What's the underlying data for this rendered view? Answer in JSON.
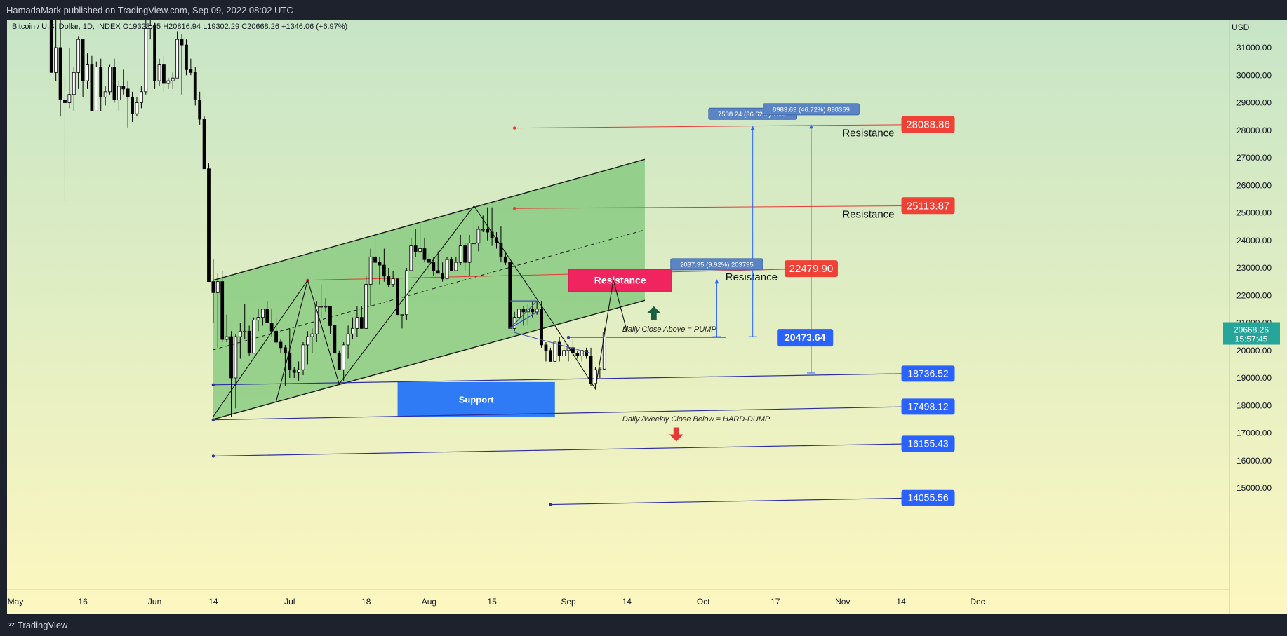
{
  "header": {
    "published": "HamadaMark published on TradingView.com, Sep 09, 2022 08:02 UTC"
  },
  "footer": {
    "brand": "TradingView",
    "logo_icon": "tradingview-logo-icon"
  },
  "colors": {
    "bg_top": "#c7e5c6",
    "bg_bottom": "#fdf7c0",
    "bull_body": "#ffffff",
    "bear_body": "#000000",
    "channel_fill": "#7dc77a",
    "resistance_line": "#e53935",
    "support_line": "#2f2fa0",
    "label_red": "#f04136",
    "label_blue": "#2962ff",
    "support_box": "#2f7bf5",
    "resistance_box": "#f0245e",
    "current_price": "#26a69a"
  },
  "chart_data": {
    "type": "candlestick",
    "symbol_line": "Bitcoin / U.S. Dollar, 1D, INDEX  O19323.45  H20816.94  L19302.29  C20668.26  +1346.06 (+6.97%)",
    "currency": "USD",
    "y_range": [
      14400,
      31900
    ],
    "y_ticks": [
      "31000.00",
      "30000.00",
      "29000.00",
      "28000.00",
      "27000.00",
      "26000.00",
      "25000.00",
      "24000.00",
      "23000.00",
      "22000.00",
      "21000.00",
      "20000.00",
      "19000.00",
      "18000.00",
      "17000.00",
      "16000.00",
      "15000.00"
    ],
    "x_range": [
      "2022-05-01",
      "2022-12-04"
    ],
    "x_ticks": [
      {
        "date": "2022-05-01",
        "label": "May"
      },
      {
        "date": "2022-05-16",
        "label": "16"
      },
      {
        "date": "2022-06-01",
        "label": "Jun"
      },
      {
        "date": "2022-06-14",
        "label": "14"
      },
      {
        "date": "2022-07-01",
        "label": "Jul"
      },
      {
        "date": "2022-07-18",
        "label": "18"
      },
      {
        "date": "2022-08-01",
        "label": "Aug"
      },
      {
        "date": "2022-08-15",
        "label": "15"
      },
      {
        "date": "2022-09-01",
        "label": "Sep"
      },
      {
        "date": "2022-09-14",
        "label": "14"
      },
      {
        "date": "2022-10-01",
        "label": "Oct"
      },
      {
        "date": "2022-10-17",
        "label": "17"
      },
      {
        "date": "2022-11-01",
        "label": "Nov"
      },
      {
        "date": "2022-11-14",
        "label": "14"
      },
      {
        "date": "2022-12-01",
        "label": "Dec"
      }
    ],
    "candles": [
      [
        "2022-05-09",
        34000,
        34200,
        30200,
        30100
      ],
      [
        "2022-05-10",
        30100,
        32000,
        29800,
        31000
      ],
      [
        "2022-05-11",
        31000,
        32000,
        28500,
        29100
      ],
      [
        "2022-05-12",
        29100,
        30000,
        25400,
        29000
      ],
      [
        "2022-05-13",
        29000,
        31000,
        28800,
        29300
      ],
      [
        "2022-05-14",
        29300,
        30300,
        28700,
        30100
      ],
      [
        "2022-05-15",
        30100,
        31400,
        29500,
        31300
      ],
      [
        "2022-05-16",
        31300,
        31300,
        29200,
        29800
      ],
      [
        "2022-05-17",
        29800,
        30800,
        29500,
        30400
      ],
      [
        "2022-05-18",
        30400,
        30700,
        28700,
        28700
      ],
      [
        "2022-05-19",
        28700,
        30500,
        28700,
        30300
      ],
      [
        "2022-05-20",
        30300,
        30600,
        28700,
        29200
      ],
      [
        "2022-05-21",
        29200,
        29600,
        28900,
        29400
      ],
      [
        "2022-05-22",
        29400,
        30400,
        29300,
        30300
      ],
      [
        "2022-05-23",
        30300,
        30600,
        29000,
        29100
      ],
      [
        "2022-05-24",
        29100,
        29800,
        28700,
        29600
      ],
      [
        "2022-05-25",
        29600,
        30200,
        29300,
        29500
      ],
      [
        "2022-05-26",
        29500,
        29800,
        28100,
        29200
      ],
      [
        "2022-05-27",
        29200,
        29400,
        28300,
        28600
      ],
      [
        "2022-05-28",
        28600,
        29200,
        28500,
        29000
      ],
      [
        "2022-05-29",
        29000,
        29600,
        28800,
        29400
      ],
      [
        "2022-05-30",
        29400,
        32200,
        29300,
        31700
      ],
      [
        "2022-05-31",
        31700,
        32300,
        31300,
        31800
      ],
      [
        "2022-06-01",
        31800,
        31900,
        29500,
        29800
      ],
      [
        "2022-06-02",
        29800,
        30600,
        29600,
        30400
      ],
      [
        "2022-06-03",
        30400,
        30700,
        29400,
        29700
      ],
      [
        "2022-06-04",
        29700,
        29900,
        29500,
        29800
      ],
      [
        "2022-06-05",
        29800,
        30100,
        29500,
        29900
      ],
      [
        "2022-06-06",
        29900,
        31600,
        29900,
        31300
      ],
      [
        "2022-06-07",
        31300,
        31500,
        29300,
        31100
      ],
      [
        "2022-06-08",
        31100,
        31300,
        30000,
        30200
      ],
      [
        "2022-06-09",
        30200,
        30600,
        30000,
        30100
      ],
      [
        "2022-06-10",
        30100,
        30300,
        28900,
        29100
      ],
      [
        "2022-06-11",
        29100,
        29400,
        28200,
        28400
      ],
      [
        "2022-06-12",
        28400,
        28500,
        26600,
        26600
      ],
      [
        "2022-06-13",
        26600,
        26800,
        22600,
        22500
      ],
      [
        "2022-06-14",
        22500,
        23300,
        21000,
        22100
      ],
      [
        "2022-06-15",
        22100,
        22800,
        20100,
        22500
      ],
      [
        "2022-06-16",
        22500,
        22900,
        20300,
        20400
      ],
      [
        "2022-06-17",
        20400,
        21300,
        20300,
        20500
      ],
      [
        "2022-06-18",
        20500,
        20700,
        17600,
        19000
      ],
      [
        "2022-06-19",
        19000,
        20600,
        17900,
        20500
      ],
      [
        "2022-06-20",
        20500,
        21000,
        19700,
        20700
      ],
      [
        "2022-06-21",
        20700,
        21700,
        20400,
        20700
      ],
      [
        "2022-06-22",
        20700,
        20900,
        19800,
        19900
      ],
      [
        "2022-06-23",
        19900,
        21200,
        19900,
        21100
      ],
      [
        "2022-06-24",
        21100,
        21500,
        20700,
        21200
      ],
      [
        "2022-06-25",
        21200,
        21500,
        20900,
        21500
      ],
      [
        "2022-06-26",
        21500,
        21800,
        21000,
        21000
      ],
      [
        "2022-06-27",
        21000,
        21500,
        20500,
        20700
      ],
      [
        "2022-06-28",
        20700,
        21200,
        20200,
        20300
      ],
      [
        "2022-06-29",
        20300,
        20400,
        19900,
        20100
      ],
      [
        "2022-06-30",
        20100,
        20200,
        18700,
        19900
      ],
      [
        "2022-07-01",
        19900,
        20800,
        19000,
        19300
      ],
      [
        "2022-07-02",
        19300,
        19400,
        19000,
        19200
      ],
      [
        "2022-07-03",
        19200,
        19600,
        18900,
        19300
      ],
      [
        "2022-07-04",
        19300,
        20300,
        19100,
        20200
      ],
      [
        "2022-07-05",
        20200,
        20700,
        19500,
        20500
      ],
      [
        "2022-07-06",
        20500,
        20800,
        19900,
        20600
      ],
      [
        "2022-07-07",
        20600,
        21800,
        20300,
        21600
      ],
      [
        "2022-07-08",
        21600,
        22400,
        21200,
        21600
      ],
      [
        "2022-07-09",
        21600,
        21900,
        21400,
        21600
      ],
      [
        "2022-07-10",
        21600,
        21600,
        20600,
        20900
      ],
      [
        "2022-07-11",
        20900,
        20900,
        19900,
        19900
      ],
      [
        "2022-07-12",
        19900,
        20000,
        19300,
        19300
      ],
      [
        "2022-07-13",
        19300,
        20300,
        18900,
        20200
      ],
      [
        "2022-07-14",
        20200,
        20900,
        19700,
        20600
      ],
      [
        "2022-07-15",
        20600,
        21200,
        20400,
        20800
      ],
      [
        "2022-07-16",
        20800,
        21600,
        20500,
        21200
      ],
      [
        "2022-07-17",
        21200,
        21600,
        20800,
        20800
      ],
      [
        "2022-07-18",
        20800,
        22700,
        20800,
        22400
      ],
      [
        "2022-07-19",
        22400,
        23700,
        21600,
        23400
      ],
      [
        "2022-07-20",
        23400,
        24200,
        23000,
        23200
      ],
      [
        "2022-07-21",
        23200,
        23400,
        22400,
        23100
      ],
      [
        "2022-07-22",
        23100,
        23700,
        22500,
        22700
      ],
      [
        "2022-07-23",
        22700,
        23000,
        22300,
        22400
      ],
      [
        "2022-07-24",
        22400,
        22900,
        22300,
        22600
      ],
      [
        "2022-07-25",
        22600,
        22600,
        21300,
        21300
      ],
      [
        "2022-07-26",
        21300,
        21300,
        20800,
        21300
      ],
      [
        "2022-07-27",
        21300,
        23000,
        21100,
        22900
      ],
      [
        "2022-07-28",
        22900,
        24100,
        22900,
        23800
      ],
      [
        "2022-07-29",
        23800,
        24400,
        23400,
        23600
      ],
      [
        "2022-07-30",
        23600,
        24600,
        23500,
        23700
      ],
      [
        "2022-07-31",
        23700,
        24100,
        23200,
        23300
      ],
      [
        "2022-08-01",
        23300,
        23500,
        22900,
        23200
      ],
      [
        "2022-08-02",
        23200,
        23400,
        22700,
        22900
      ],
      [
        "2022-08-03",
        22900,
        23600,
        22800,
        22800
      ],
      [
        "2022-08-04",
        22800,
        23200,
        22500,
        22600
      ],
      [
        "2022-08-05",
        22600,
        23400,
        22600,
        23300
      ],
      [
        "2022-08-06",
        23300,
        23400,
        22900,
        22900
      ],
      [
        "2022-08-07",
        22900,
        23400,
        22900,
        23200
      ],
      [
        "2022-08-08",
        23200,
        24200,
        23100,
        23800
      ],
      [
        "2022-08-09",
        23800,
        23900,
        22900,
        23200
      ],
      [
        "2022-08-10",
        23200,
        24200,
        22700,
        23900
      ],
      [
        "2022-08-11",
        23900,
        24900,
        23900,
        23900
      ],
      [
        "2022-08-12",
        23900,
        24500,
        23600,
        24400
      ],
      [
        "2022-08-13",
        24400,
        24900,
        24300,
        24400
      ],
      [
        "2022-08-14",
        24400,
        25200,
        24000,
        24300
      ],
      [
        "2022-08-15",
        24300,
        25200,
        23800,
        24100
      ],
      [
        "2022-08-16",
        24100,
        24300,
        23700,
        23900
      ],
      [
        "2022-08-17",
        23900,
        24500,
        23200,
        23400
      ],
      [
        "2022-08-18",
        23400,
        23600,
        23100,
        23200
      ],
      [
        "2022-08-19",
        23200,
        23200,
        20800,
        20800
      ],
      [
        "2022-08-20",
        20800,
        21400,
        20700,
        21200
      ],
      [
        "2022-08-21",
        21200,
        21700,
        21100,
        21500
      ],
      [
        "2022-08-22",
        21500,
        21600,
        20900,
        21400
      ],
      [
        "2022-08-23",
        21400,
        21700,
        20900,
        21500
      ],
      [
        "2022-08-24",
        21500,
        21800,
        21200,
        21400
      ],
      [
        "2022-08-25",
        21400,
        21800,
        21300,
        21500
      ],
      [
        "2022-08-26",
        21500,
        21800,
        20100,
        20200
      ],
      [
        "2022-08-27",
        20200,
        20300,
        19600,
        20000
      ],
      [
        "2022-08-28",
        20000,
        20100,
        19600,
        19600
      ],
      [
        "2022-08-29",
        19600,
        20300,
        19600,
        20300
      ],
      [
        "2022-08-30",
        20300,
        20500,
        19600,
        19800
      ],
      [
        "2022-08-31",
        19800,
        20400,
        19800,
        20000
      ],
      [
        "2022-09-01",
        20000,
        20200,
        19600,
        20100
      ],
      [
        "2022-09-02",
        20100,
        20400,
        19800,
        19900
      ],
      [
        "2022-09-03",
        19900,
        20000,
        19700,
        19800
      ],
      [
        "2022-09-04",
        19800,
        20000,
        19600,
        20000
      ],
      [
        "2022-09-05",
        20000,
        20100,
        19700,
        19800
      ],
      [
        "2022-09-06",
        19800,
        20100,
        18700,
        18800
      ],
      [
        "2022-09-07",
        18800,
        19400,
        18600,
        19300
      ],
      [
        "2022-09-08",
        19300,
        19400,
        19000,
        19323
      ],
      [
        "2022-09-09",
        19323.45,
        20816.94,
        19302.29,
        20668.26
      ]
    ],
    "channel": {
      "lower": [
        [
          "2022-06-14",
          17498
        ],
        [
          "2022-09-18",
          21820
        ]
      ],
      "upper": [
        [
          "2022-06-14",
          22550
        ],
        [
          "2022-09-18",
          26940
        ]
      ],
      "mid": [
        [
          "2022-06-14",
          20024
        ],
        [
          "2022-09-18",
          24380
        ]
      ]
    },
    "resistance_lines": [
      {
        "start": "2022-07-05",
        "end": "2022-10-25",
        "p0": 22550,
        "p1": 22970,
        "label": "22479.90",
        "text": "Resistance"
      },
      {
        "start": "2022-08-20",
        "end": "2022-11-20",
        "p0": 25160,
        "p1": 25260,
        "label": "25113.87",
        "text": "Resistance"
      },
      {
        "start": "2022-08-20",
        "end": "2022-11-20",
        "p0": 28080,
        "p1": 28210,
        "label": "28088.86",
        "text": "Resistance"
      }
    ],
    "support_lines": [
      {
        "start": "2022-06-14",
        "end": "2022-11-20",
        "p0": 18750,
        "p1": 19170,
        "label": "18736.52"
      },
      {
        "start": "2022-06-14",
        "end": "2022-11-20",
        "p0": 17480,
        "p1": 17970,
        "label": "17498.12"
      },
      {
        "start": "2022-06-14",
        "end": "2022-11-20",
        "p0": 16160,
        "p1": 16620,
        "label": "16155.43"
      },
      {
        "start": "2022-08-28",
        "end": "2022-11-20",
        "p0": 14400,
        "p1": 14650,
        "label": "14055.56"
      }
    ],
    "pump_level": {
      "start": "2022-09-01",
      "end": "2022-10-06",
      "price": 20473.64,
      "label": "20473.64"
    },
    "support_zone": {
      "start": "2022-07-25",
      "end": "2022-08-29",
      "p0": 17600,
      "p1": 18850,
      "text": "Support"
    },
    "resistance_zone": {
      "start": "2022-09-01",
      "end": "2022-09-24",
      "p0": 22150,
      "p1": 22950,
      "text": "Resistance"
    },
    "measures": [
      {
        "date": "2022-10-12",
        "from": 20500,
        "to": 28140,
        "label": "7538.24 (36.62%) 7538"
      },
      {
        "date": "2022-10-25",
        "from": 19180,
        "to": 28200,
        "label": "8983.69 (46.72%) 898369"
      },
      {
        "date": "2022-10-04",
        "from": 20500,
        "to": 22570,
        "label": "2037.95 (9.92%) 203795"
      }
    ],
    "annotations": [
      {
        "text": "Daily Close Above = PUMP",
        "date": "2022-09-13",
        "price": 20680
      },
      {
        "text": "Daily /Weekly Close Below = HARD-DUMP",
        "date": "2022-09-13",
        "price": 17420
      }
    ],
    "current_price": {
      "price": 20668.26,
      "label": "20668.26",
      "countdown": "15:57:45"
    }
  }
}
